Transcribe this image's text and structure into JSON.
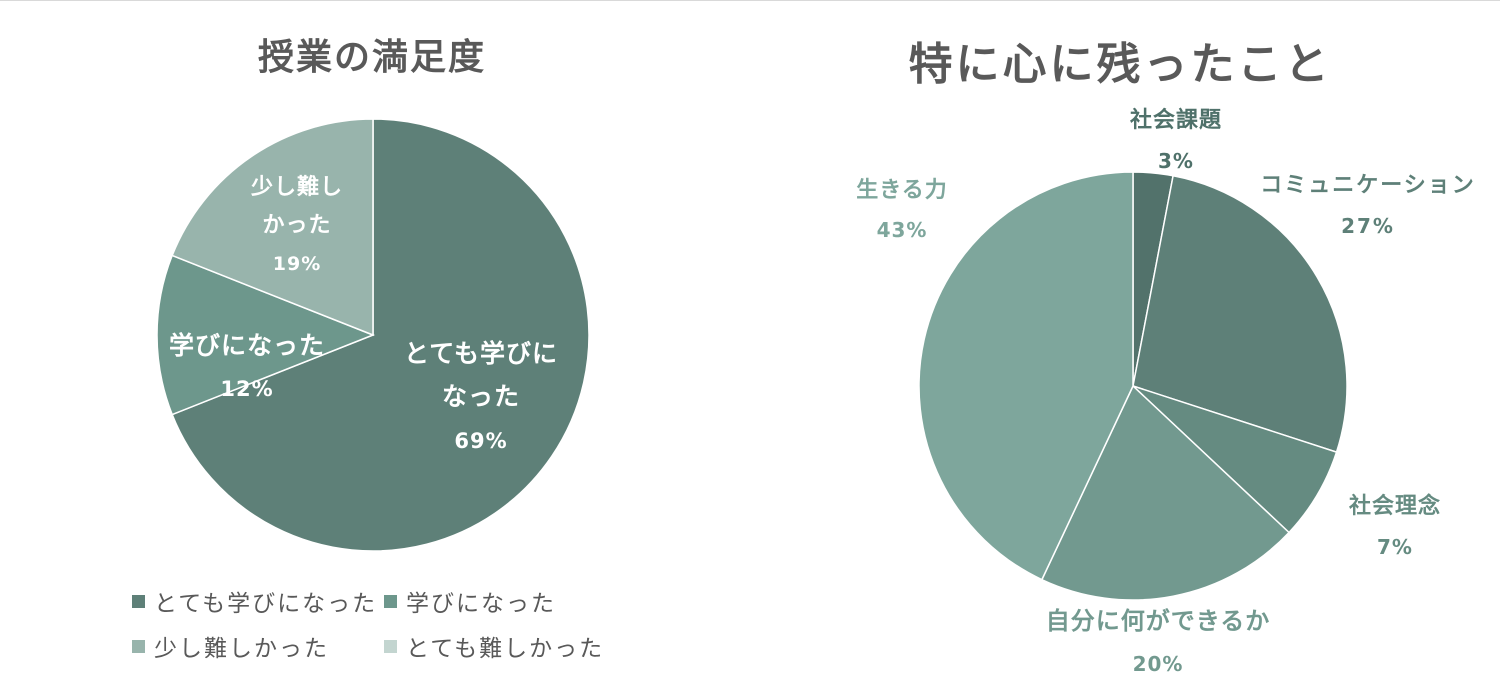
{
  "chart_data": [
    {
      "type": "pie",
      "title": "授業の満足度",
      "slices": [
        {
          "category": "とても学びになった",
          "value": 69,
          "label_lines": [
            "とても学びに",
            "なった"
          ],
          "value_label": "69%",
          "color": "#5e8078"
        },
        {
          "category": "学びになった",
          "value": 12,
          "label_lines": [
            "学びになった"
          ],
          "value_label": "12%",
          "color": "#6d978c"
        },
        {
          "category": "少し難しかった",
          "value": 19,
          "label_lines": [
            "少し難し",
            "かった"
          ],
          "value_label": "19%",
          "color": "#98b4ac"
        },
        {
          "category": "とても難しかった",
          "value": 0,
          "label_lines": [],
          "value_label": "",
          "color": "#c3d5d0"
        }
      ],
      "legend": [
        {
          "label": "とても学びになった",
          "color": "#5e8078"
        },
        {
          "label": "学びになった",
          "color": "#6d978c"
        },
        {
          "label": "少し難しかった",
          "color": "#98b4ac"
        },
        {
          "label": "とても難しかった",
          "color": "#c3d5d0"
        }
      ],
      "legend_position": "bottom"
    },
    {
      "type": "pie",
      "title": "特に心に残ったこと",
      "slices": [
        {
          "category": "社会課題",
          "value": 3,
          "value_label": "3%",
          "color": "#52726b"
        },
        {
          "category": "コミュニケーション",
          "value": 27,
          "value_label": "27%",
          "color": "#5e8078"
        },
        {
          "category": "社会理念",
          "value": 7,
          "value_label": "7%",
          "color": "#658b81"
        },
        {
          "category": "自分に何ができるか",
          "value": 20,
          "value_label": "20%",
          "color": "#72998f"
        },
        {
          "category": "生きる力",
          "value": 43,
          "value_label": "43%",
          "color": "#7ea69c"
        }
      ],
      "legend_position": "none"
    }
  ]
}
